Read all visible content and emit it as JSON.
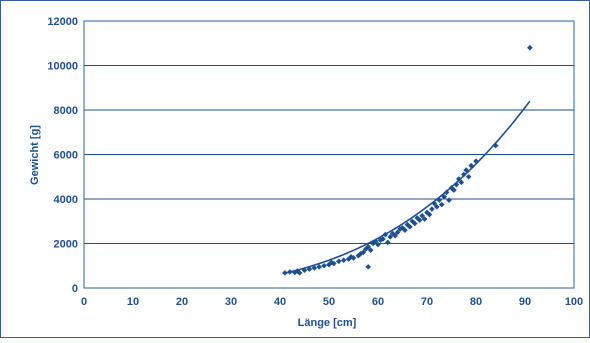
{
  "colors": {
    "axis_text": "#1d4f91",
    "frame": "#2f5f9f",
    "gridline": "#1d4f91",
    "marker": "#1d4f91",
    "curve": "#1d4f91"
  },
  "chart_data": {
    "type": "scatter",
    "xlabel": "Länge [cm]",
    "ylabel": "Gewicht [g]",
    "xlim": [
      0,
      100
    ],
    "ylim": [
      0,
      12000
    ],
    "x_ticks": [
      0,
      10,
      20,
      30,
      40,
      50,
      60,
      70,
      80,
      90,
      100
    ],
    "y_ticks": [
      0,
      2000,
      4000,
      6000,
      8000,
      10000,
      12000
    ],
    "x_tick_labels": [
      "0",
      "10",
      "20",
      "30",
      "40",
      "50",
      "60",
      "70",
      "80",
      "90",
      "100"
    ],
    "y_tick_labels": [
      "0",
      "2000",
      "4000",
      "6000",
      "8000",
      "10000",
      "12000"
    ],
    "grid": "horizontal",
    "legend": "none",
    "series": [
      {
        "marker": "diamond",
        "points": [
          [
            41,
            680
          ],
          [
            42,
            720
          ],
          [
            43,
            700
          ],
          [
            43.5,
            760
          ],
          [
            44,
            680
          ],
          [
            45,
            800
          ],
          [
            46,
            850
          ],
          [
            47,
            900
          ],
          [
            48,
            950
          ],
          [
            49,
            1000
          ],
          [
            50,
            1050
          ],
          [
            50.5,
            1150
          ],
          [
            51,
            1100
          ],
          [
            52,
            1200
          ],
          [
            53,
            1250
          ],
          [
            54,
            1300
          ],
          [
            54.5,
            1400
          ],
          [
            55,
            1350
          ],
          [
            56,
            1450
          ],
          [
            56.5,
            1550
          ],
          [
            57,
            1600
          ],
          [
            57.5,
            1750
          ],
          [
            58,
            1850
          ],
          [
            58,
            950
          ],
          [
            58.5,
            1700
          ],
          [
            59,
            2000
          ],
          [
            59.5,
            2100
          ],
          [
            60,
            1950
          ],
          [
            60.5,
            2150
          ],
          [
            61,
            2200
          ],
          [
            61.5,
            2400
          ],
          [
            62,
            2050
          ],
          [
            62.5,
            2300
          ],
          [
            63,
            2450
          ],
          [
            63.5,
            2350
          ],
          [
            64,
            2500
          ],
          [
            64.5,
            2650
          ],
          [
            65,
            2700
          ],
          [
            65.5,
            2600
          ],
          [
            66,
            2850
          ],
          [
            66.5,
            2750
          ],
          [
            67,
            3000
          ],
          [
            67.5,
            2900
          ],
          [
            68,
            3150
          ],
          [
            68.5,
            3050
          ],
          [
            69,
            3250
          ],
          [
            69.5,
            3100
          ],
          [
            70,
            3400
          ],
          [
            70.5,
            3300
          ],
          [
            71,
            3550
          ],
          [
            71.5,
            3800
          ],
          [
            72,
            3650
          ],
          [
            72.5,
            3950
          ],
          [
            73,
            3750
          ],
          [
            73.5,
            4100
          ],
          [
            74,
            4300
          ],
          [
            74.5,
            3950
          ],
          [
            75,
            4500
          ],
          [
            75.5,
            4400
          ],
          [
            76,
            4650
          ],
          [
            76.5,
            4900
          ],
          [
            77,
            4750
          ],
          [
            77.5,
            5100
          ],
          [
            78,
            5300
          ],
          [
            78.5,
            5000
          ],
          [
            79,
            5500
          ],
          [
            80,
            5700
          ],
          [
            84,
            6400
          ],
          [
            91,
            10800
          ]
        ]
      }
    ],
    "trendline": {
      "form": "power",
      "a": 0.00495,
      "b": 3.18,
      "x_range": [
        41,
        91
      ]
    }
  }
}
